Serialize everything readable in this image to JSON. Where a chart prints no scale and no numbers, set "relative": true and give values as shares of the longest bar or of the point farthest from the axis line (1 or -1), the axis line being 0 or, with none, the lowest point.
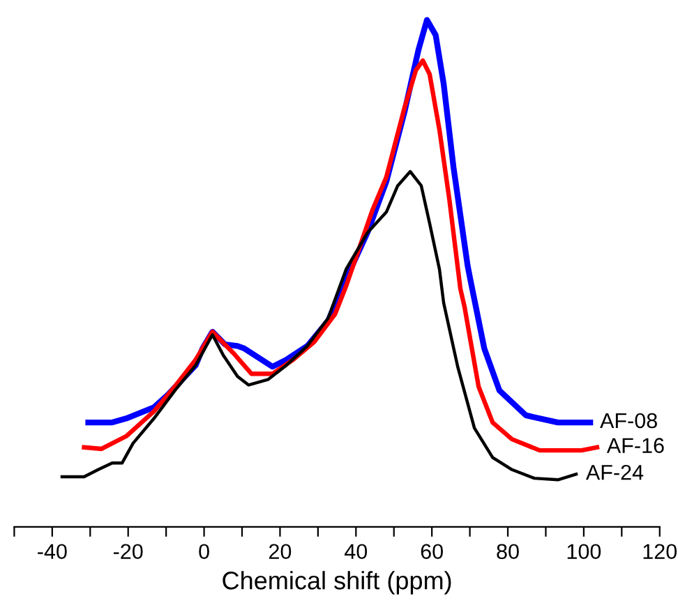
{
  "chart_data": {
    "type": "line",
    "xlabel": "Chemical shift (ppm)",
    "relative": true,
    "legend": false,
    "grid": false,
    "tick_labels": "x",
    "xlim": [
      -50,
      120
    ],
    "xticks": [
      {
        "value": -50,
        "label": null
      },
      -40,
      {
        "value": -30,
        "label": null
      },
      -20,
      {
        "value": -10,
        "label": null
      },
      0,
      {
        "value": 10,
        "label": null
      },
      20,
      {
        "value": 30,
        "label": null
      },
      40,
      {
        "value": 50,
        "label": null
      },
      60,
      {
        "value": 70,
        "label": null
      },
      80,
      {
        "value": 90,
        "label": null
      },
      100,
      {
        "value": 110,
        "label": null
      },
      120
    ],
    "series": [
      {
        "name": "AF-08",
        "color": "#0000ff",
        "x": [
          -30.5,
          -24.2,
          -20.5,
          -13.2,
          -9.5,
          -2.2,
          -0.4,
          2.2,
          5.5,
          8.8,
          10.6,
          18,
          21.7,
          27.2,
          32.7,
          37.4,
          43,
          48,
          52.8,
          56.5,
          58.7,
          61,
          63.1,
          65.7,
          69.4,
          70.1,
          73.8,
          77.8,
          84.8,
          93.2,
          101.7
        ],
        "values": [
          0.206,
          0.206,
          0.214,
          0.236,
          0.261,
          0.319,
          0.352,
          0.385,
          0.36,
          0.357,
          0.352,
          0.316,
          0.33,
          0.357,
          0.407,
          0.489,
          0.58,
          0.681,
          0.819,
          0.942,
          1,
          0.97,
          0.874,
          0.709,
          0.516,
          0.489,
          0.352,
          0.269,
          0.22,
          0.206,
          0.206
        ]
      },
      {
        "name": "AF-16",
        "color": "#ff0000",
        "x": [
          -31.6,
          -27,
          -20.5,
          -13.2,
          -7.7,
          -2.2,
          2.2,
          7.7,
          12.5,
          18,
          23.5,
          29,
          34.5,
          37.4,
          44.4,
          48,
          52.8,
          55.8,
          57.6,
          59.4,
          62,
          64.6,
          67.5,
          68.6,
          72.3,
          76,
          81.1,
          88.4,
          99.4,
          103.5
        ],
        "values": [
          0.157,
          0.154,
          0.179,
          0.228,
          0.277,
          0.33,
          0.385,
          0.343,
          0.302,
          0.302,
          0.33,
          0.365,
          0.42,
          0.475,
          0.626,
          0.69,
          0.827,
          0.901,
          0.92,
          0.893,
          0.783,
          0.646,
          0.47,
          0.434,
          0.277,
          0.206,
          0.173,
          0.151,
          0.151,
          0.157
        ]
      },
      {
        "name": "AF-24",
        "color": "#000000",
        "x": [
          -37.4,
          -31.6,
          -27.9,
          -24.2,
          -21.6,
          -18.7,
          -13.2,
          -7.7,
          -2.2,
          2.2,
          5.1,
          8.8,
          11.7,
          16.9,
          21.7,
          27.2,
          32.7,
          37.4,
          43,
          48,
          51,
          54.3,
          57.2,
          59.4,
          62,
          63.1,
          66.8,
          71.2,
          76,
          81.1,
          87,
          93.2,
          98
        ],
        "values": [
          0.099,
          0.099,
          0.113,
          0.126,
          0.126,
          0.165,
          0.214,
          0.269,
          0.319,
          0.379,
          0.338,
          0.297,
          0.28,
          0.291,
          0.319,
          0.357,
          0.412,
          0.508,
          0.58,
          0.621,
          0.673,
          0.701,
          0.673,
          0.599,
          0.508,
          0.442,
          0.316,
          0.195,
          0.137,
          0.113,
          0.096,
          0.093,
          0.104
        ]
      }
    ]
  }
}
